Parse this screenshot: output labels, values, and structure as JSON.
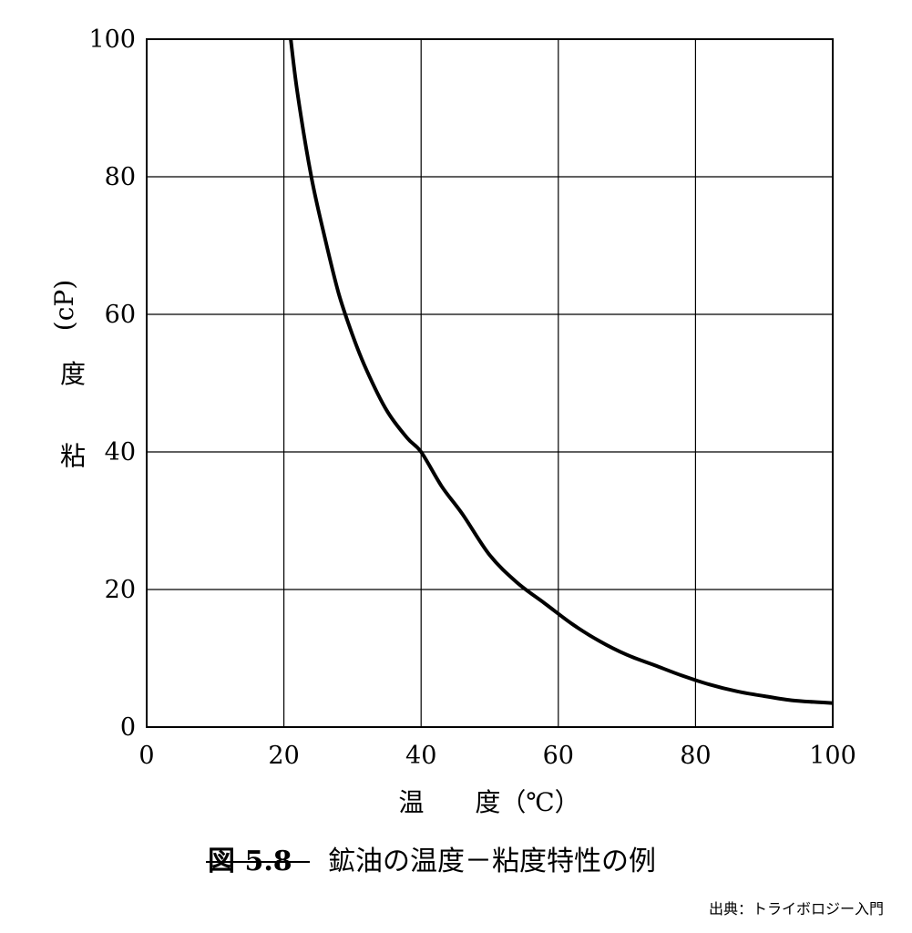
{
  "chart_data": {
    "type": "line",
    "xlabel": "温　　度（℃）",
    "ylabel_chars": [
      "粘",
      "度",
      "(cP)"
    ],
    "xlim": [
      0,
      100
    ],
    "ylim": [
      0,
      100
    ],
    "x_ticks": [
      "0",
      "20",
      "40",
      "60",
      "80",
      "100"
    ],
    "y_ticks": [
      "0",
      "20",
      "40",
      "60",
      "80",
      "100"
    ],
    "x_tick_values": [
      0,
      20,
      40,
      60,
      80,
      100
    ],
    "y_tick_values": [
      0,
      20,
      40,
      60,
      80,
      100
    ],
    "grid": true,
    "series": [
      {
        "x": [
          21,
          22,
          24,
          26,
          28,
          30,
          32,
          35,
          38,
          40,
          43,
          46,
          50,
          54,
          58,
          62,
          66,
          70,
          74,
          78,
          82,
          86,
          90,
          94,
          98,
          100
        ],
        "y": [
          100,
          92,
          80,
          71,
          63,
          57,
          52,
          46,
          42,
          40,
          35,
          31,
          25,
          21,
          18,
          15,
          12.5,
          10.5,
          9,
          7.5,
          6.2,
          5.2,
          4.5,
          3.9,
          3.6,
          3.5
        ]
      }
    ]
  },
  "caption": {
    "number": "図 5.8",
    "title": "鉱油の温度－粘度特性の例"
  },
  "source": "出典：トライボロジー入門"
}
